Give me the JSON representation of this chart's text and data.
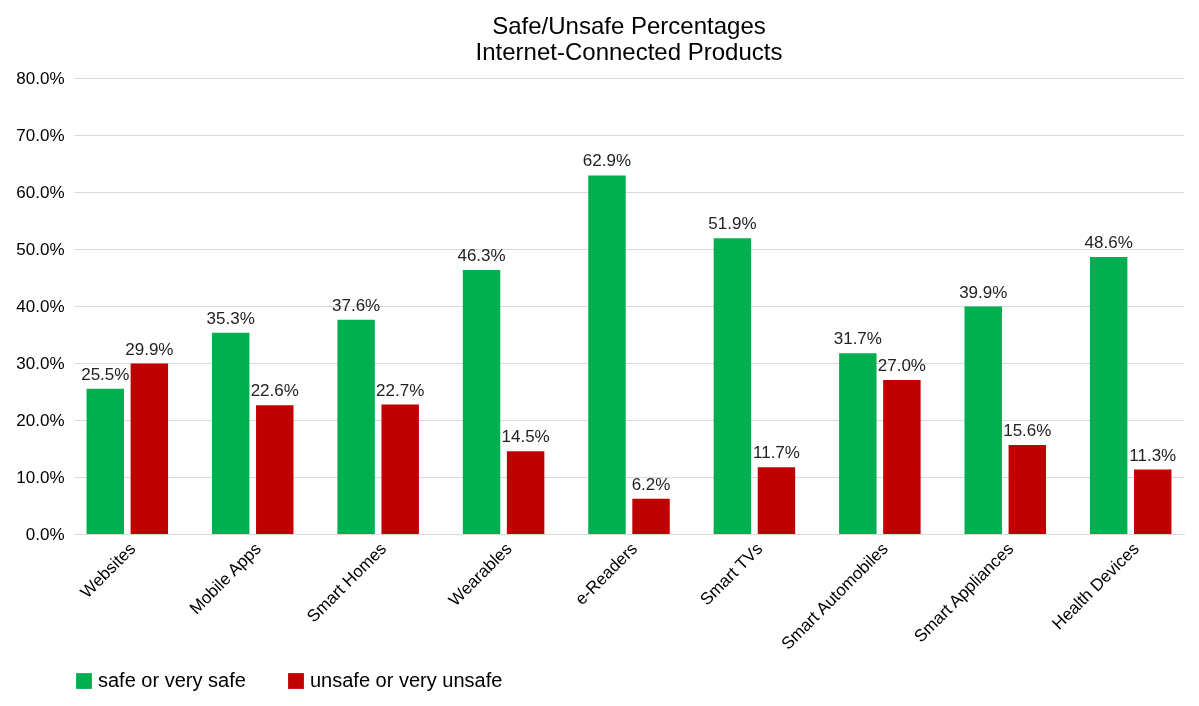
{
  "chart_data": {
    "type": "bar",
    "title": "Safe/Unsafe Percentages\nInternet-Connected Products",
    "categories": [
      "Websites",
      "Mobile Apps",
      "Smart Homes",
      "Wearables",
      "e-Readers",
      "Smart TVs",
      "Smart Automobiles",
      "Smart Appliances",
      "Health Devices"
    ],
    "series": [
      {
        "name": "safe or very safe",
        "color": "#00b050",
        "values": [
          25.5,
          35.3,
          37.6,
          46.3,
          62.9,
          51.9,
          31.7,
          39.9,
          48.6
        ],
        "value_labels": [
          "25.5%",
          "35.3%",
          "37.6%",
          "46.3%",
          "62.9%",
          "51.9%",
          "31.7%",
          "39.9%",
          "48.6%"
        ]
      },
      {
        "name": "unsafe or very unsafe",
        "color": "#c00000",
        "values": [
          29.9,
          22.6,
          22.7,
          14.5,
          6.2,
          11.7,
          27.0,
          15.6,
          11.3
        ],
        "value_labels": [
          "29.9%",
          "22.6%",
          "22.7%",
          "14.5%",
          "6.2%",
          "11.7%",
          "27.0%",
          "15.6%",
          "11.3%"
        ]
      }
    ],
    "ylim": [
      0,
      80
    ],
    "yticks": [
      {
        "value": 0,
        "label": "0.0%"
      },
      {
        "value": 10,
        "label": "10.0%"
      },
      {
        "value": 20,
        "label": "20.0%"
      },
      {
        "value": 30,
        "label": "30.0%"
      },
      {
        "value": 40,
        "label": "40.0%"
      },
      {
        "value": 50,
        "label": "50.0%"
      },
      {
        "value": 60,
        "label": "60.0%"
      },
      {
        "value": 70,
        "label": "70.0%"
      },
      {
        "value": 80,
        "label": "80.0%"
      }
    ],
    "grid": "y",
    "legend": "bottom"
  }
}
